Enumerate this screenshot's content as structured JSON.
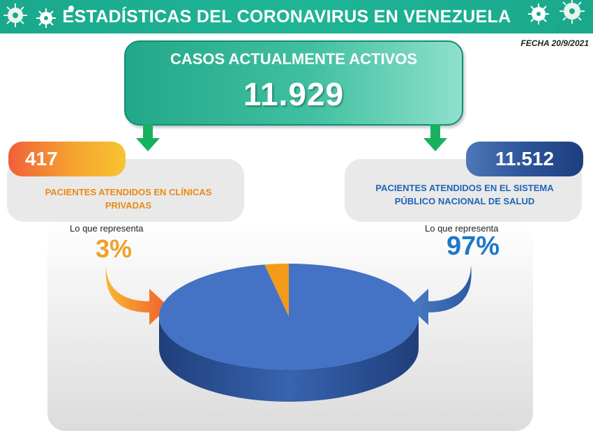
{
  "header": {
    "title": "ESTADÍSTICAS DEL CORONAVIRUS EN VENEZUELA"
  },
  "date": "FECHA 20/9/2021",
  "active": {
    "label": "CASOS ACTUALMENTE ACTIVOS",
    "value": "11.929"
  },
  "private": {
    "value": "417",
    "label": "PACIENTES ATENDIDOS EN CLÍNICAS PRIVADAS",
    "label_line1": "PACIENTES ATENDIDOS EN CLÍNICAS",
    "label_line2": "PRIVADAS",
    "represents": "Lo que representa",
    "percent": "3%"
  },
  "public": {
    "value": "11.512",
    "label": "PACIENTES ATENDIDOS EN EL SISTEMA PÚBLICO NACIONAL DE SALUD",
    "label_line1": "PACIENTES ATENDIDOS EN EL SISTEMA",
    "label_line2": "PÚBLICO NACIONAL DE SALUD",
    "represents": "Lo que representa",
    "percent": "97%"
  },
  "colors": {
    "header": "#1aa88c",
    "private": "#f29a1a",
    "public": "#4472c4"
  },
  "icons": [
    "virus-icon"
  ],
  "chart_data": {
    "type": "pie",
    "categories": [
      "PACIENTES ATENDIDOS EN CLÍNICAS PRIVADAS",
      "PACIENTES ATENDIDOS EN EL SISTEMA PÚBLICO NACIONAL DE SALUD"
    ],
    "values": [
      3,
      97
    ],
    "counts": [
      417,
      11512
    ],
    "colors": [
      "#f29a1a",
      "#4472c4"
    ],
    "title": "",
    "legend": "none"
  }
}
